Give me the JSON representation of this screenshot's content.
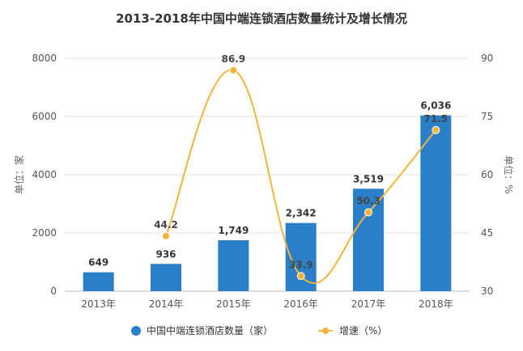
{
  "chart_data": {
    "type": "bar+line",
    "title": "2013-2018年中国中端连锁酒店数量统计及增长情况",
    "categories": [
      "2013年",
      "2014年",
      "2015年",
      "2016年",
      "2017年",
      "2018年"
    ],
    "series": [
      {
        "name": "中国中端连锁酒店数量（家）",
        "type": "bar",
        "axis": "left",
        "values": [
          649,
          936,
          1749,
          2342,
          3519,
          6036
        ],
        "labels": [
          "649",
          "936",
          "1,749",
          "2,342",
          "3,519",
          "6,036"
        ],
        "color": "#2a7fc9"
      },
      {
        "name": "增速（%）",
        "type": "line",
        "axis": "right",
        "values": [
          null,
          44.2,
          86.9,
          33.9,
          50.3,
          71.5
        ],
        "labels": [
          "",
          "44.2",
          "86.9",
          "33.9",
          "50.3",
          "71.5"
        ],
        "color": "#f2b43a"
      }
    ],
    "y_left": {
      "label": "单位：家",
      "ylim": [
        0,
        8000
      ],
      "ticks": [
        "0",
        "2000",
        "4000",
        "6000",
        "8000"
      ]
    },
    "y_right": {
      "label": "单位：%",
      "ylim": [
        30,
        90
      ],
      "ticks": [
        "30",
        "45",
        "60",
        "75",
        "90"
      ]
    },
    "grid": true,
    "legend_position": "bottom"
  }
}
